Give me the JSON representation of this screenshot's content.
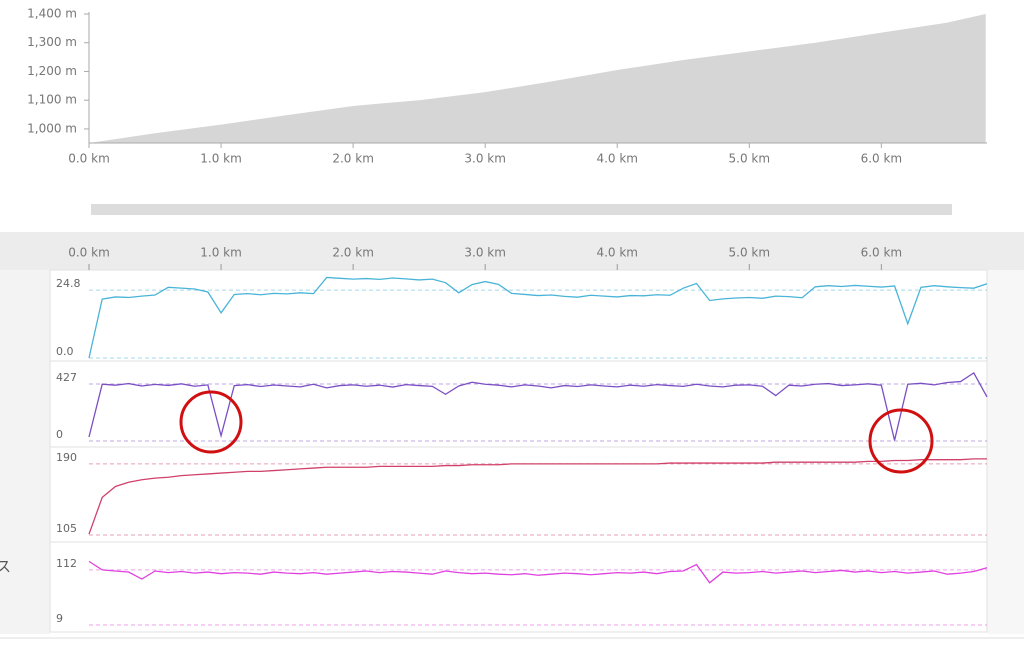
{
  "chart_data": [
    {
      "type": "area",
      "color": "#d6d6d6",
      "x": [
        0,
        0.5,
        1,
        1.5,
        2,
        2.5,
        3,
        3.5,
        4,
        4.5,
        5,
        5.5,
        6,
        6.5,
        6.79
      ],
      "values": [
        951,
        985,
        1015,
        1048,
        1080,
        1100,
        1128,
        1165,
        1205,
        1240,
        1270,
        1300,
        1335,
        1370,
        1400
      ],
      "xlim": [
        0,
        6.8
      ],
      "ylim": [
        951,
        1400
      ],
      "xticks": [
        {
          "value": 0,
          "label": "0.0 km"
        },
        {
          "value": 1,
          "label": "1.0 km"
        },
        {
          "value": 2,
          "label": "2.0 km"
        },
        {
          "value": 3,
          "label": "3.0 km"
        },
        {
          "value": 4,
          "label": "4.0 km"
        },
        {
          "value": 5,
          "label": "5.0 km"
        },
        {
          "value": 6,
          "label": "6.0 km"
        }
      ],
      "yticks": [
        {
          "value": 1000,
          "label": "1,000 m"
        },
        {
          "value": 1100,
          "label": "1,100 m"
        },
        {
          "value": 1200,
          "label": "1,200 m"
        },
        {
          "value": 1300,
          "label": "1,300 m"
        },
        {
          "value": 1400,
          "label": "1,400 m"
        }
      ]
    },
    {
      "type": "line",
      "grid": "dashed",
      "xlim": [
        0,
        6.8
      ],
      "xticks": [
        {
          "value": 0,
          "label": "0.0 km"
        },
        {
          "value": 1,
          "label": "1.0 km"
        },
        {
          "value": 2,
          "label": "2.0 km"
        },
        {
          "value": 3,
          "label": "3.0 km"
        },
        {
          "value": 4,
          "label": "4.0 km"
        },
        {
          "value": 5,
          "label": "5.0 km"
        },
        {
          "value": 6,
          "label": "6.0 km"
        }
      ],
      "x": [
        0,
        0.1,
        0.2,
        0.3,
        0.4,
        0.5,
        0.6,
        0.7,
        0.8,
        0.9,
        1,
        1.1,
        1.2,
        1.3,
        1.4,
        1.5,
        1.6,
        1.7,
        1.8,
        1.9,
        2,
        2.1,
        2.2,
        2.3,
        2.4,
        2.5,
        2.6,
        2.7,
        2.8,
        2.9,
        3,
        3.1,
        3.2,
        3.3,
        3.4,
        3.5,
        3.6,
        3.7,
        3.8,
        3.9,
        4,
        4.1,
        4.2,
        4.3,
        4.4,
        4.5,
        4.6,
        4.7,
        4.8,
        4.9,
        5,
        5.1,
        5.2,
        5.3,
        5.4,
        5.5,
        5.6,
        5.7,
        5.8,
        5.9,
        6,
        6.1,
        6.2,
        6.3,
        6.4,
        6.5,
        6.6,
        6.7,
        6.8
      ],
      "panels": [
        {
          "ylim": [
            0,
            31.4
          ],
          "yticks": [
            {
              "value": 0,
              "label": "0.0"
            },
            24.8
          ],
          "series": [
            {
              "color": "#4ab4d8",
              "values": [
                0,
                21.5,
                22.3,
                22.1,
                22.6,
                23.0,
                25.8,
                25.5,
                25.2,
                24.1,
                16.5,
                23.2,
                23.5,
                23.1,
                23.6,
                23.4,
                23.8,
                23.5,
                29.4,
                29.1,
                28.8,
                29.0,
                28.7,
                29.2,
                28.9,
                28.5,
                28.8,
                27.5,
                23.8,
                26.8,
                27.9,
                26.9,
                23.6,
                23.2,
                22.8,
                23.0,
                22.5,
                22.2,
                22.9,
                22.6,
                22.3,
                22.8,
                22.7,
                23.1,
                22.9,
                25.5,
                27.2,
                21.0,
                21.6,
                21.9,
                22.1,
                21.8,
                22.6,
                22.4,
                22.0,
                26.0,
                26.4,
                26.1,
                26.5,
                26.2,
                25.9,
                26.3,
                12.5,
                25.8,
                26.4,
                26.0,
                25.7,
                25.5,
                27.1
              ]
            }
          ]
        },
        {
          "ylim": [
            0,
            554
          ],
          "yticks": [
            0,
            427
          ],
          "series": [
            {
              "color": "#7b4fc4",
              "values": [
                30,
                425,
                418,
                430,
                412,
                424,
                416,
                428,
                410,
                420,
                40,
                415,
                422,
                408,
                419,
                412,
                405,
                425,
                398,
                415,
                420,
                410,
                418,
                404,
                422,
                415,
                409,
                350,
                412,
                440,
                425,
                418,
                405,
                420,
                412,
                398,
                415,
                408,
                420,
                412,
                405,
                418,
                410,
                422,
                415,
                409,
                425,
                412,
                405,
                418,
                420,
                410,
                340,
                418,
                412,
                425,
                430,
                415,
                420,
                428,
                418,
                5,
                425,
                432,
                420,
                438,
                445,
                510,
                330
              ]
            }
          ]
        },
        {
          "ylim": [
            105,
            203
          ],
          "yticks": [
            105,
            190
          ],
          "series": [
            {
              "color": "#d0406a",
              "values": [
                106,
                150,
                163,
                168,
                171,
                173,
                174,
                176,
                177,
                178,
                179,
                180,
                181,
                181,
                182,
                183,
                184,
                185,
                186,
                186,
                186,
                186,
                187,
                187,
                187,
                187,
                187,
                188,
                188,
                189,
                189,
                189,
                190,
                190,
                190,
                190,
                190,
                190,
                190,
                190,
                190,
                190,
                190,
                190,
                191,
                191,
                191,
                191,
                191,
                191,
                191,
                191,
                192,
                192,
                192,
                192,
                192,
                192,
                192,
                193,
                193,
                194,
                194,
                195,
                195,
                195,
                195,
                196,
                196
              ]
            }
          ]
        },
        {
          "ylim": [
            9,
            153
          ],
          "yticks": [
            9,
            112
          ],
          "label": "ス",
          "series": [
            {
              "color": "#e040e0",
              "values": [
                128,
                112,
                110,
                108,
                95,
                110,
                107,
                109,
                106,
                108,
                105,
                107,
                106,
                104,
                108,
                106,
                105,
                107,
                104,
                106,
                108,
                110,
                107,
                109,
                108,
                106,
                104,
                110,
                107,
                105,
                106,
                104,
                103,
                105,
                102,
                104,
                106,
                105,
                103,
                105,
                107,
                106,
                108,
                105,
                109,
                110,
                122,
                88,
                108,
                106,
                107,
                109,
                106,
                108,
                110,
                107,
                109,
                111,
                108,
                110,
                107,
                109,
                106,
                108,
                110,
                104,
                106,
                109,
                116
              ]
            }
          ]
        }
      ]
    }
  ]
}
